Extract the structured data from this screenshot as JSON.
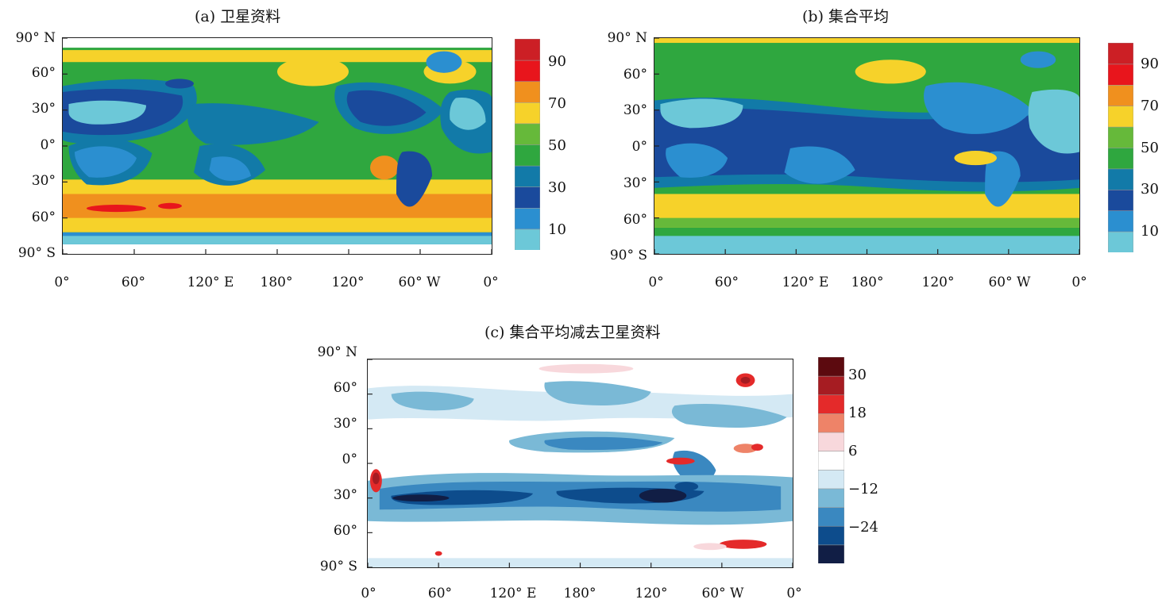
{
  "panels": [
    {
      "id": "a",
      "title": "(a) 卫星资料",
      "lat_labels": [
        "90° N",
        "60°",
        "30°",
        "0°",
        "30°",
        "60°",
        "90° S"
      ],
      "lon_labels": [
        "0°",
        "60°",
        "120° E",
        "180°",
        "120°",
        "60° W",
        "0°"
      ],
      "colorbar": {
        "colors": [
          "#6cc8d8",
          "#2b8fd0",
          "#1a4a9c",
          "#127aa8",
          "#2fa73f",
          "#66b93a",
          "#f6d22a",
          "#f0901e",
          "#e8151c",
          "#cc1f25"
        ],
        "labels": [
          "10",
          "30",
          "50",
          "70",
          "90"
        ]
      }
    },
    {
      "id": "b",
      "title": "(b) 集合平均",
      "lat_labels": [
        "90° N",
        "60°",
        "30°",
        "0°",
        "30°",
        "60°",
        "90° S"
      ],
      "lon_labels": [
        "0°",
        "60°",
        "120° E",
        "180°",
        "120°",
        "60° W",
        "0°"
      ],
      "colorbar": {
        "colors": [
          "#6cc8d8",
          "#2b8fd0",
          "#1a4a9c",
          "#127aa8",
          "#2fa73f",
          "#66b93a",
          "#f6d22a",
          "#f0901e",
          "#e8151c",
          "#cc1f25"
        ],
        "labels": [
          "10",
          "30",
          "50",
          "70",
          "90"
        ]
      }
    },
    {
      "id": "c",
      "title": "(c) 集合平均减去卫星资料",
      "lat_labels": [
        "90° N",
        "60°",
        "30°",
        "0°",
        "30°",
        "60°",
        "90° S"
      ],
      "lon_labels": [
        "0°",
        "60°",
        "120° E",
        "180°",
        "120°",
        "60° W",
        "0°"
      ],
      "colorbar": {
        "colors": [
          "#111e45",
          "#0d4c8c",
          "#3a88c0",
          "#7ab9d6",
          "#d4e9f4",
          "#ffffff",
          "#f8d8dc",
          "#ee8368",
          "#e42a2a",
          "#a61c22",
          "#5c0a0f"
        ],
        "labels": [
          "−24",
          "−12",
          "6",
          "18",
          "30"
        ]
      }
    }
  ]
}
